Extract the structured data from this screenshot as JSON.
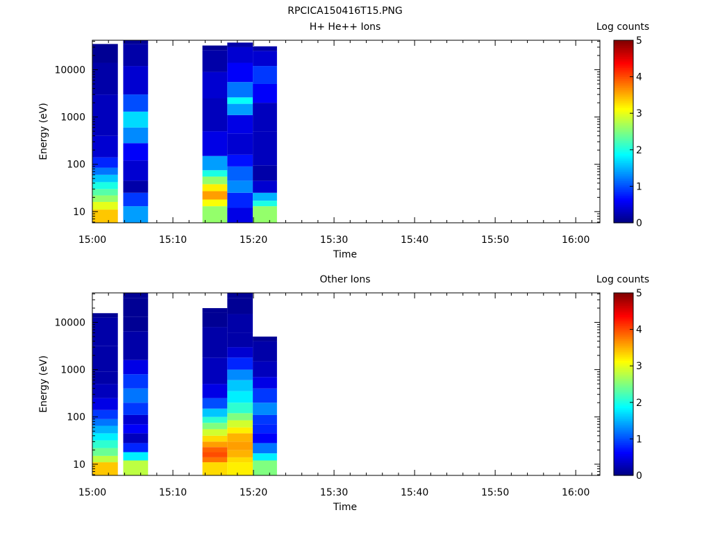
{
  "figure_title": "RPCICA150416T15.PNG",
  "chart_data": [
    {
      "type": "heatmap",
      "title": "H+ He++ Ions",
      "xlabel": "Time",
      "ylabel": "Energy (eV)",
      "x_ticks": [
        "15:00",
        "15:10",
        "15:20",
        "15:30",
        "15:40",
        "15:50",
        "16:00"
      ],
      "x_range": [
        "15:00",
        "16:03"
      ],
      "y_scale": "log",
      "y_ticks": [
        10,
        100,
        1000,
        10000
      ],
      "y_tick_labels": [
        "10",
        "100",
        "1000",
        "10000"
      ],
      "y_range": [
        5.8,
        42000
      ],
      "colorbar": {
        "label": "Log counts",
        "range": [
          0,
          5
        ],
        "ticks": [
          "0",
          "1",
          "2",
          "3",
          "4",
          "5"
        ]
      },
      "columns": [
        {
          "start": "15:00:00",
          "end": "15:03:10",
          "cells": [
            [
              8.0,
              3.4
            ],
            [
              11.0,
              3.0
            ],
            [
              16.0,
              2.6
            ],
            [
              22.0,
              2.3
            ],
            [
              30.0,
              2.0
            ],
            [
              42.0,
              1.6
            ],
            [
              60.0,
              1.2
            ],
            [
              85.0,
              0.8
            ],
            [
              140.0,
              0.4
            ],
            [
              400.0,
              0.3
            ],
            [
              3000.0,
              0.2
            ],
            [
              14000.0,
              0.1
            ],
            [
              28000.0,
              0.1
            ]
          ]
        },
        {
          "start": "15:03:50",
          "end": "15:06:55",
          "cells": [
            [
              8.0,
              1.4
            ],
            [
              13.0,
              0.9
            ],
            [
              25.0,
              0.2
            ],
            [
              45.0,
              0.4
            ],
            [
              120.0,
              0.6
            ],
            [
              280.0,
              1.3
            ],
            [
              600.0,
              1.7
            ],
            [
              1300.0,
              1.0
            ],
            [
              3000.0,
              0.4
            ],
            [
              12000.0,
              0.2
            ],
            [
              35000.0,
              0.1
            ]
          ]
        },
        {
          "start": "15:13:40",
          "end": "15:16:45",
          "cells": [
            [
              8.0,
              2.6
            ],
            [
              13.0,
              3.1
            ],
            [
              18.0,
              3.6
            ],
            [
              27.0,
              3.2
            ],
            [
              38.0,
              2.6
            ],
            [
              55.0,
              2.0
            ],
            [
              75.0,
              1.4
            ],
            [
              150.0,
              0.5
            ],
            [
              500.0,
              0.3
            ],
            [
              2500.0,
              0.4
            ],
            [
              9000.0,
              0.2
            ],
            [
              26000.0,
              0.1
            ]
          ]
        },
        {
          "start": "15:16:45",
          "end": "15:19:55",
          "cells": [
            [
              8.0,
              0.5
            ],
            [
              12.0,
              0.8
            ],
            [
              25.0,
              1.3
            ],
            [
              45.0,
              1.1
            ],
            [
              90.0,
              0.7
            ],
            [
              160.0,
              0.4
            ],
            [
              450.0,
              0.5
            ],
            [
              1100.0,
              1.4
            ],
            [
              1900.0,
              1.9
            ],
            [
              2600.0,
              1.2
            ],
            [
              5500.0,
              0.6
            ],
            [
              14000.0,
              0.4
            ],
            [
              30000.0,
              0.2
            ]
          ]
        },
        {
          "start": "15:19:55",
          "end": "15:22:55",
          "cells": [
            [
              8.0,
              2.6
            ],
            [
              13.0,
              2.0
            ],
            [
              17.0,
              1.5
            ],
            [
              25.0,
              0.4
            ],
            [
              45.0,
              0.2
            ],
            [
              95.0,
              0.3
            ],
            [
              500.0,
              0.3
            ],
            [
              2000.0,
              0.6
            ],
            [
              5000.0,
              0.9
            ],
            [
              12000.0,
              0.4
            ],
            [
              25000.0,
              0.2
            ]
          ]
        }
      ]
    },
    {
      "type": "heatmap",
      "title": "Other Ions",
      "xlabel": "Time",
      "ylabel": "Energy (eV)",
      "x_ticks": [
        "15:00",
        "15:10",
        "15:20",
        "15:30",
        "15:40",
        "15:50",
        "16:00"
      ],
      "x_range": [
        "15:00",
        "16:03"
      ],
      "y_scale": "log",
      "y_ticks": [
        10,
        100,
        1000,
        10000
      ],
      "y_tick_labels": [
        "10",
        "100",
        "1000",
        "10000"
      ],
      "y_range": [
        5.8,
        42000
      ],
      "colorbar": {
        "label": "Log counts",
        "range": [
          0,
          5
        ],
        "ticks": [
          "0",
          "1",
          "2",
          "3",
          "4",
          "5"
        ]
      },
      "columns": [
        {
          "start": "15:00:00",
          "end": "15:03:10",
          "cells": [
            [
              8.0,
              3.4
            ],
            [
              11.0,
              2.8
            ],
            [
              15.0,
              2.4
            ],
            [
              22.0,
              2.1
            ],
            [
              32.0,
              1.8
            ],
            [
              45.0,
              1.5
            ],
            [
              65.0,
              1.2
            ],
            [
              90.0,
              0.9
            ],
            [
              140.0,
              0.5
            ],
            [
              250.0,
              0.3
            ],
            [
              500.0,
              0.2
            ],
            [
              900.0,
              0.2
            ],
            [
              3200.0,
              0.2
            ],
            [
              12500.0,
              0.1
            ]
          ]
        },
        {
          "start": "15:03:50",
          "end": "15:06:55",
          "cells": [
            [
              8.0,
              2.8
            ],
            [
              12.0,
              1.8
            ],
            [
              18.0,
              0.8
            ],
            [
              28.0,
              0.3
            ],
            [
              45.0,
              0.6
            ],
            [
              70.0,
              0.4
            ],
            [
              110.0,
              0.9
            ],
            [
              200.0,
              1.2
            ],
            [
              400.0,
              0.9
            ],
            [
              800.0,
              0.5
            ],
            [
              1600.0,
              0.2
            ],
            [
              6500.0,
              0.1
            ],
            [
              13000.0,
              0.1
            ],
            [
              33000.0,
              0.1
            ]
          ]
        },
        {
          "start": "15:13:40",
          "end": "15:16:45",
          "cells": [
            [
              8.0,
              3.3
            ],
            [
              11.0,
              3.8
            ],
            [
              14.0,
              4.0
            ],
            [
              18.0,
              3.9
            ],
            [
              23.0,
              3.6
            ],
            [
              30.0,
              3.3
            ],
            [
              40.0,
              2.9
            ],
            [
              55.0,
              2.5
            ],
            [
              75.0,
              2.1
            ],
            [
              100.0,
              1.6
            ],
            [
              150.0,
              1.0
            ],
            [
              250.0,
              0.5
            ],
            [
              500.0,
              0.3
            ],
            [
              1800.0,
              0.2
            ],
            [
              8000.0,
              0.1
            ],
            [
              16000.0,
              0.1
            ]
          ]
        },
        {
          "start": "15:16:45",
          "end": "15:19:55",
          "cells": [
            [
              8.0,
              3.2
            ],
            [
              11.0,
              3.3
            ],
            [
              14.0,
              3.5
            ],
            [
              20.0,
              3.6
            ],
            [
              30.0,
              3.5
            ],
            [
              45.0,
              3.2
            ],
            [
              60.0,
              2.9
            ],
            [
              85.0,
              2.5
            ],
            [
              120.0,
              2.1
            ],
            [
              200.0,
              1.8
            ],
            [
              350.0,
              1.6
            ],
            [
              600.0,
              1.3
            ],
            [
              1000.0,
              0.8
            ],
            [
              1800.0,
              0.4
            ],
            [
              3000.0,
              0.2
            ],
            [
              6000.0,
              0.2
            ],
            [
              15000.0,
              0.1
            ],
            [
              33000.0,
              0.1
            ]
          ]
        },
        {
          "start": "15:19:55",
          "end": "15:22:55",
          "cells": [
            [
              8.0,
              2.5
            ],
            [
              12.0,
              1.8
            ],
            [
              17.0,
              1.2
            ],
            [
              28.0,
              0.6
            ],
            [
              45.0,
              0.8
            ],
            [
              70.0,
              0.9
            ],
            [
              110.0,
              1.3
            ],
            [
              200.0,
              0.9
            ],
            [
              400.0,
              0.5
            ],
            [
              700.0,
              0.3
            ],
            [
              1500.0,
              0.2
            ],
            [
              4000.0,
              0.1
            ]
          ]
        }
      ]
    }
  ]
}
